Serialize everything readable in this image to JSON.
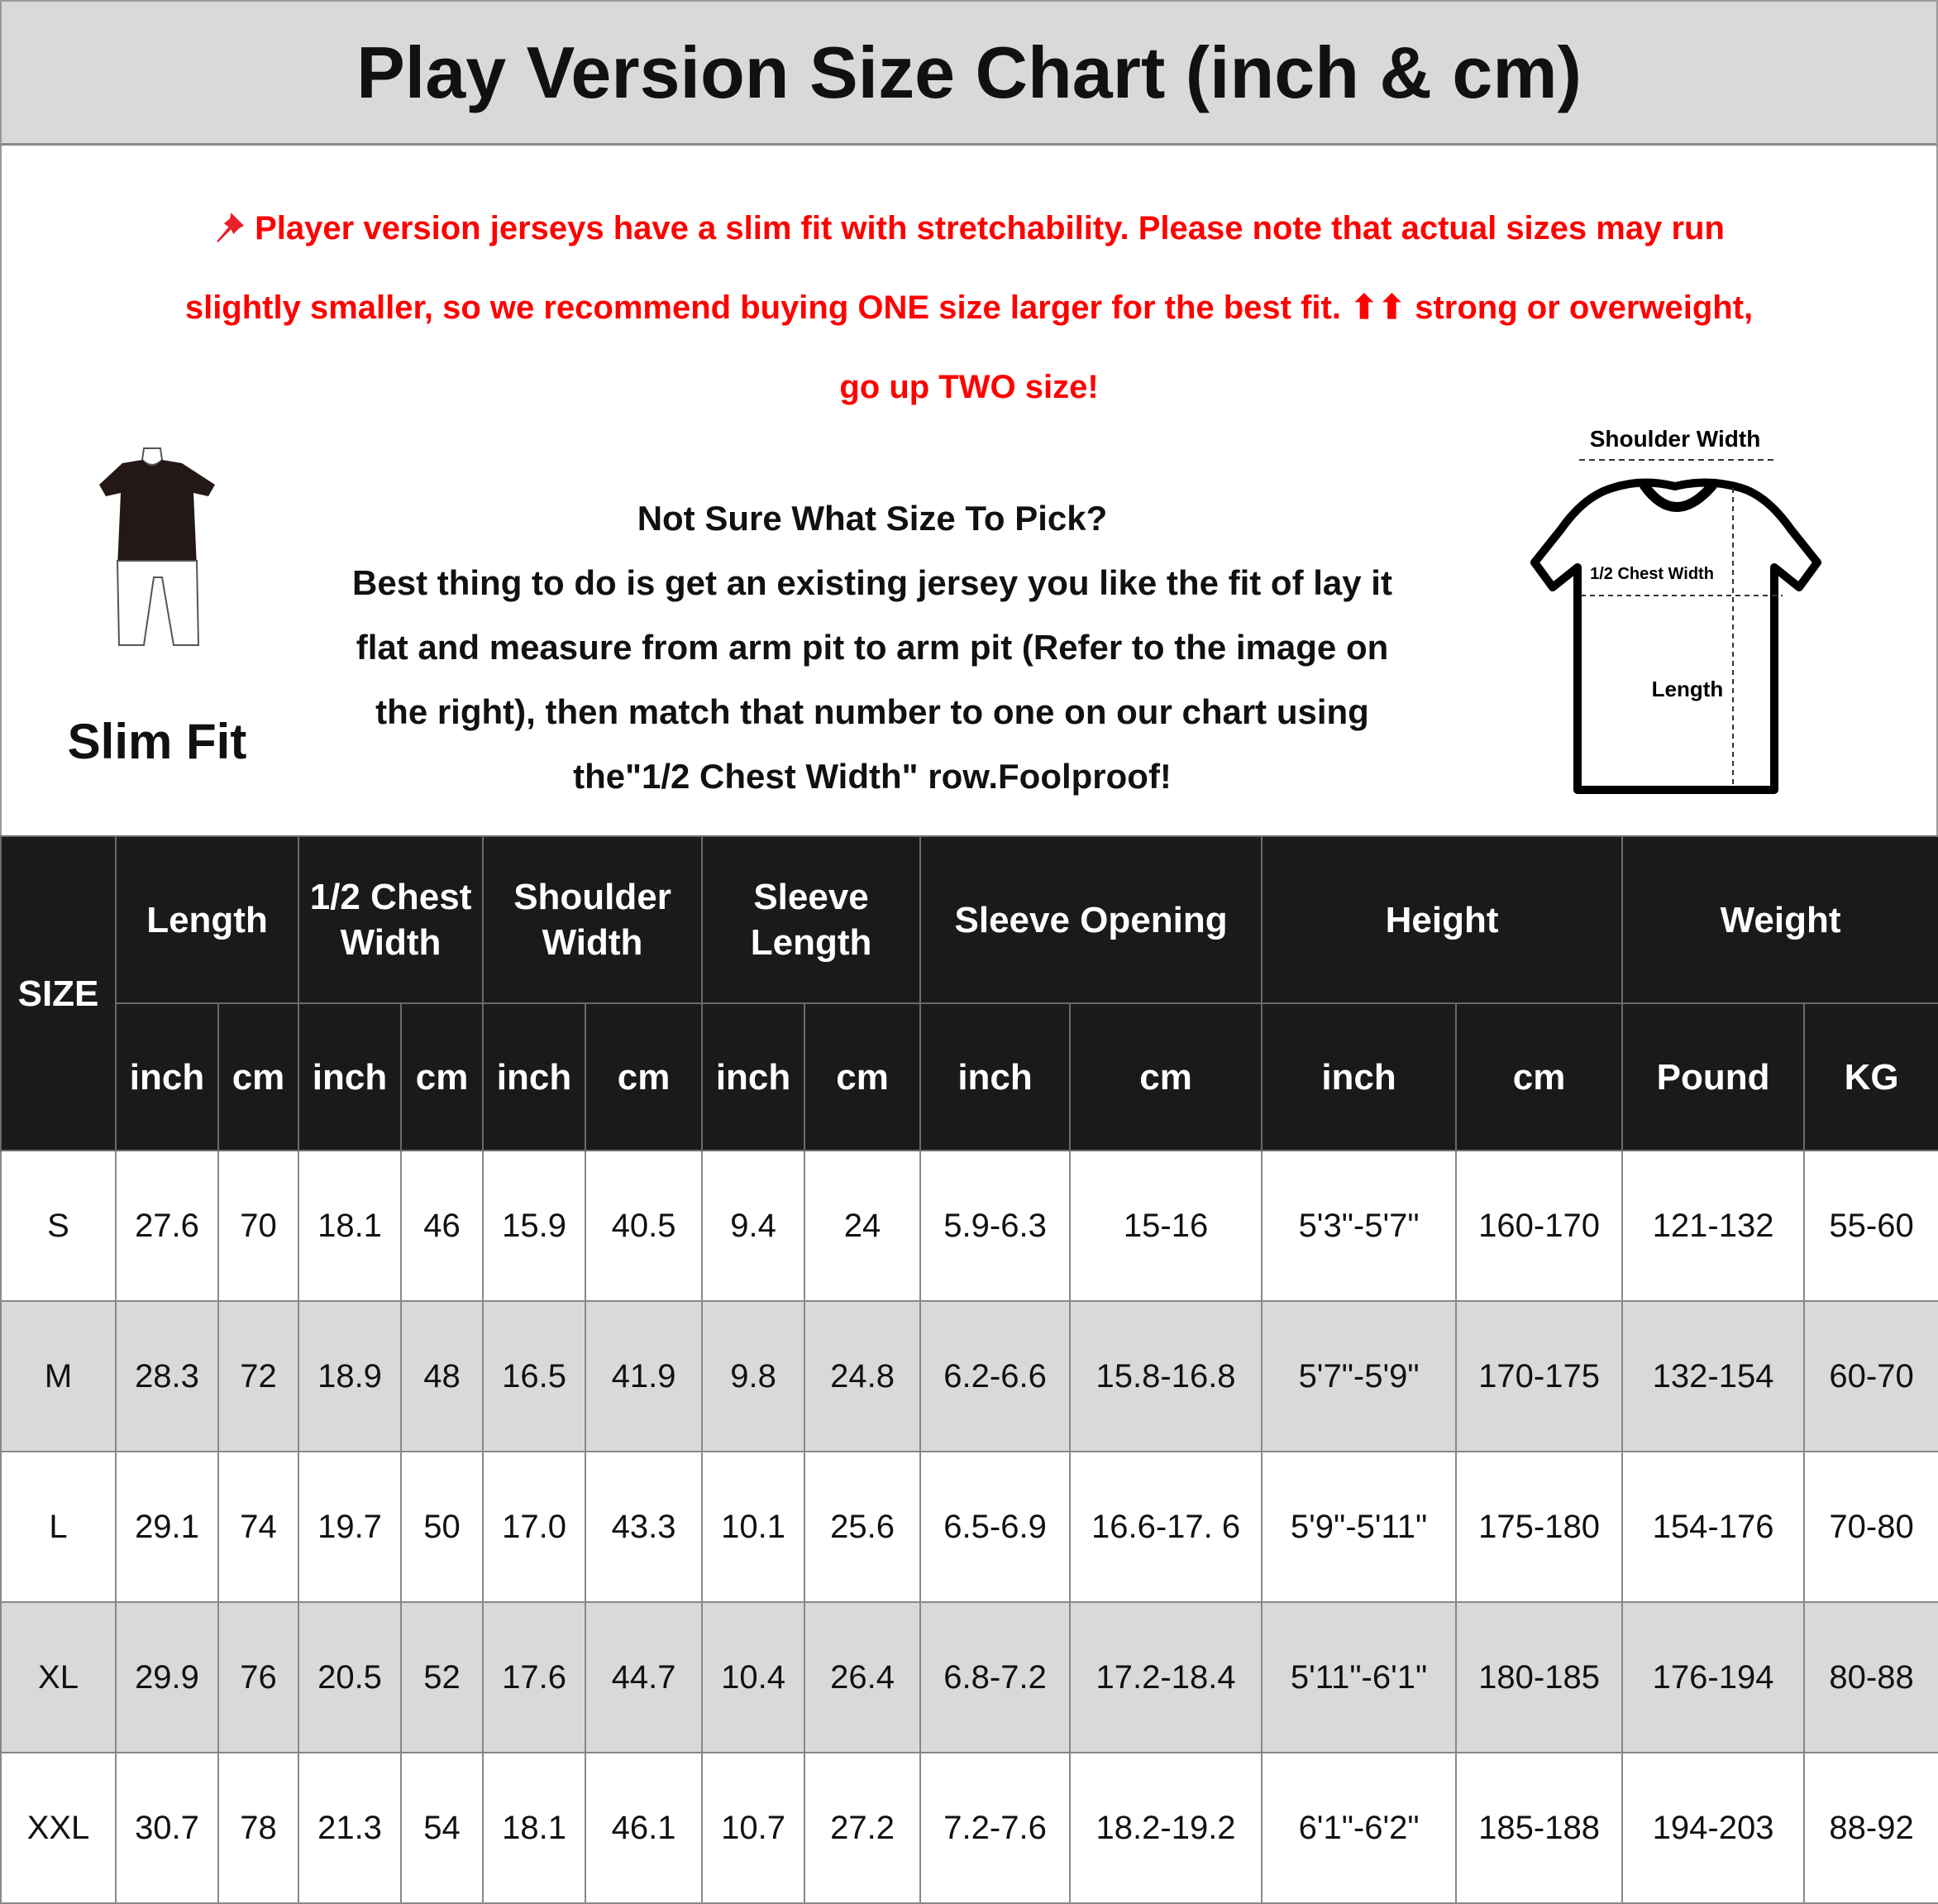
{
  "title": "Play Version Size Chart (inch & cm)",
  "note": {
    "icon": "pushpin-icon",
    "color": "#ff0000",
    "lines": [
      "Player version jerseys have a slim fit with stretchability. Please note that actual sizes may run",
      "slightly smaller, so we recommend buying ONE size larger for the best fit. ⬆⬆ strong or overweight,",
      "go up TWO size!"
    ]
  },
  "fit": {
    "label": "Slim Fit",
    "icon": "slim-fit-figure-icon"
  },
  "guide": {
    "lines": [
      "Not Sure What Size To Pick?",
      "Best thing to do is get an existing jersey you like the fit of lay it",
      "flat and measure from arm pit to arm pit (Refer to the image on",
      "the right), then match that number to one on our chart using",
      "the\"1/2 Chest Width\" row.Foolproof!"
    ]
  },
  "diagram": {
    "shoulder": "Shoulder Width",
    "chest": "1/2 Chest Width",
    "length": "Length"
  },
  "table": {
    "size_header": "SIZE",
    "groups": [
      "Length",
      "1/2 Chest Width",
      "Shoulder Width",
      "Sleeve Length",
      "Sleeve Opening",
      "Height",
      "Weight"
    ],
    "units": [
      "inch",
      "cm",
      "inch",
      "cm",
      "inch",
      "cm",
      "inch",
      "cm",
      "inch",
      "cm",
      "inch",
      "cm",
      "Pound",
      "KG"
    ],
    "rows": [
      [
        "S",
        "27.6",
        "70",
        "18.1",
        "46",
        "15.9",
        "40.5",
        "9.4",
        "24",
        "5.9-6.3",
        "15-16",
        "5'3\"-5'7\"",
        "160-170",
        "121-132",
        "55-60"
      ],
      [
        "M",
        "28.3",
        "72",
        "18.9",
        "48",
        "16.5",
        "41.9",
        "9.8",
        "24.8",
        "6.2-6.6",
        "15.8-16.8",
        "5'7\"-5'9\"",
        "170-175",
        "132-154",
        "60-70"
      ],
      [
        "L",
        "29.1",
        "74",
        "19.7",
        "50",
        "17.0",
        "43.3",
        "10.1",
        "25.6",
        "6.5-6.9",
        "16.6-17. 6",
        "5'9\"-5'11\"",
        "175-180",
        "154-176",
        "70-80"
      ],
      [
        "XL",
        "29.9",
        "76",
        "20.5",
        "52",
        "17.6",
        "44.7",
        "10.4",
        "26.4",
        "6.8-7.2",
        "17.2-18.4",
        "5'11\"-6'1\"",
        "180-185",
        "176-194",
        "80-88"
      ],
      [
        "XXL",
        "30.7",
        "78",
        "21.3",
        "54",
        "18.1",
        "46.1",
        "10.7",
        "27.2",
        "7.2-7.6",
        "18.2-19.2",
        "6'1\"-6'2\"",
        "185-188",
        "194-203",
        "88-92"
      ]
    ]
  }
}
